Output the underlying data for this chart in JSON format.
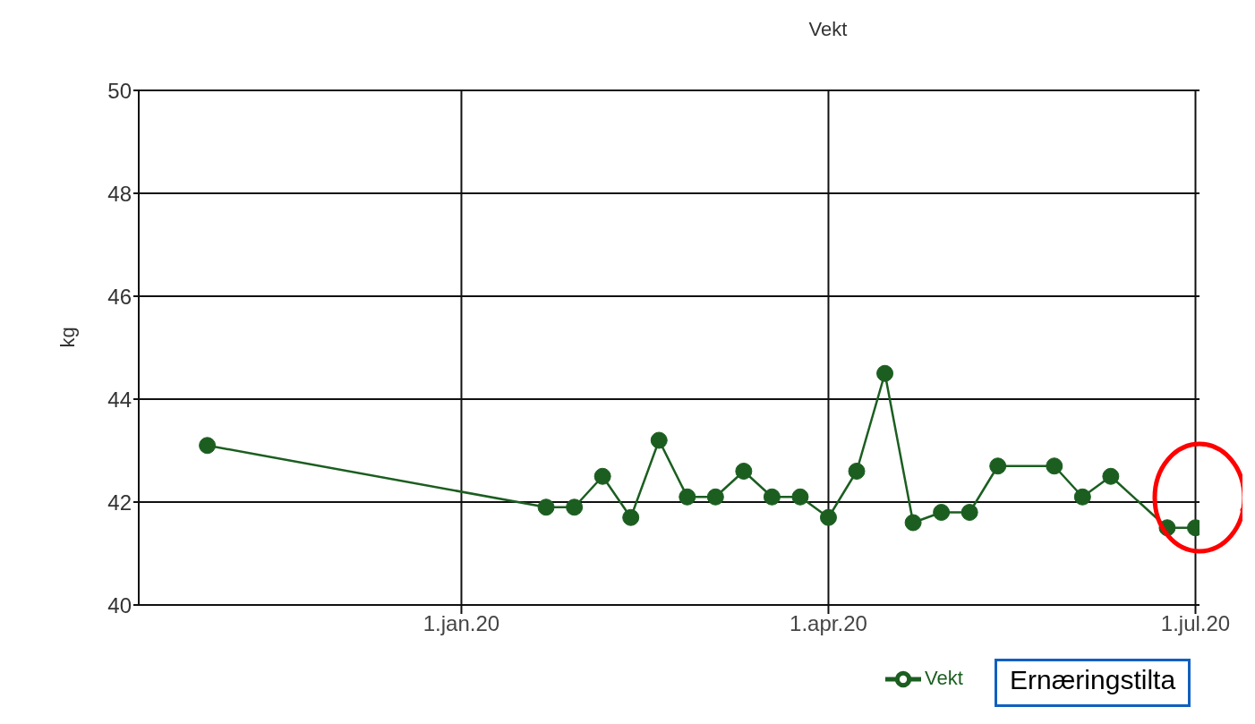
{
  "chart_data": {
    "type": "line",
    "title": "Vekt",
    "ylabel": "kg",
    "x": [
      "2019-10-30",
      "2020-01-22",
      "2020-01-29",
      "2020-02-05",
      "2020-02-12",
      "2020-02-19",
      "2020-02-26",
      "2020-03-04",
      "2020-03-11",
      "2020-03-18",
      "2020-03-25",
      "2020-04-01",
      "2020-04-08",
      "2020-04-15",
      "2020-04-22",
      "2020-04-29",
      "2020-05-06",
      "2020-05-13",
      "2020-05-27",
      "2020-06-03",
      "2020-06-10",
      "2020-06-24",
      "2020-07-01"
    ],
    "series": [
      {
        "name": "Vekt",
        "color": "#1b5e20",
        "values": [
          43.1,
          41.9,
          41.9,
          42.5,
          41.7,
          43.2,
          42.1,
          42.1,
          42.6,
          42.1,
          42.1,
          41.7,
          42.6,
          44.5,
          41.6,
          41.8,
          41.8,
          42.7,
          42.7,
          42.1,
          42.5,
          41.5,
          41.5
        ]
      }
    ],
    "xlim": [
      "2019-10-13",
      "2020-07-02"
    ],
    "xticks": [
      {
        "value": "2020-01-01",
        "label": "1.jan.20"
      },
      {
        "value": "2020-04-01",
        "label": "1.apr.20"
      },
      {
        "value": "2020-07-01",
        "label": "1.jul.20"
      }
    ],
    "ylim": [
      40,
      50
    ],
    "yticks": [
      40,
      42,
      44,
      46,
      48,
      50
    ],
    "grid": true,
    "legend": "bottom",
    "marker": "circle",
    "line_style": "solid",
    "annotations": [
      "Ernæringstilta"
    ]
  }
}
